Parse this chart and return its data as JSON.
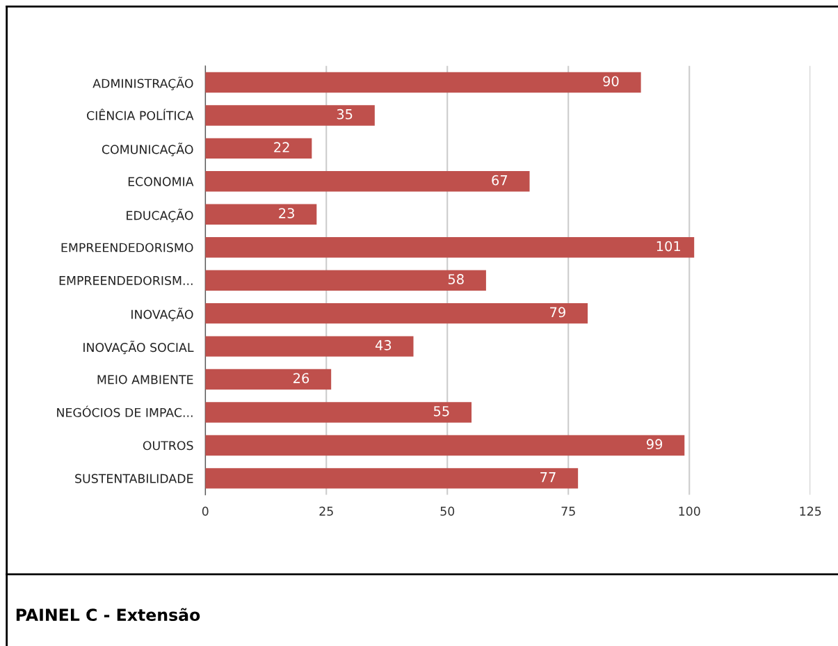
{
  "chart_data": {
    "type": "bar",
    "orientation": "horizontal",
    "title": "PAINEL C - Extensão",
    "categories": [
      "ADMINISTRAÇÃO",
      "CIÊNCIA POLÍTICA",
      "COMUNICAÇÃO",
      "ECONOMIA",
      "EDUCAÇÃO",
      "EMPREENDEDORISMO",
      "EMPREENDEDORISM...",
      "INOVAÇÃO",
      "INOVAÇÃO SOCIAL",
      "MEIO AMBIENTE",
      "NEGÓCIOS DE IMPAC...",
      "OUTROS",
      "SUSTENTABILIDADE"
    ],
    "values": [
      90,
      35,
      22,
      67,
      23,
      101,
      58,
      79,
      43,
      26,
      55,
      99,
      77
    ],
    "color": "#bf504c",
    "xlim": [
      0,
      125
    ],
    "xticks": [
      0,
      25,
      50,
      75,
      100,
      125
    ],
    "grid": "x",
    "data_labels": true
  }
}
